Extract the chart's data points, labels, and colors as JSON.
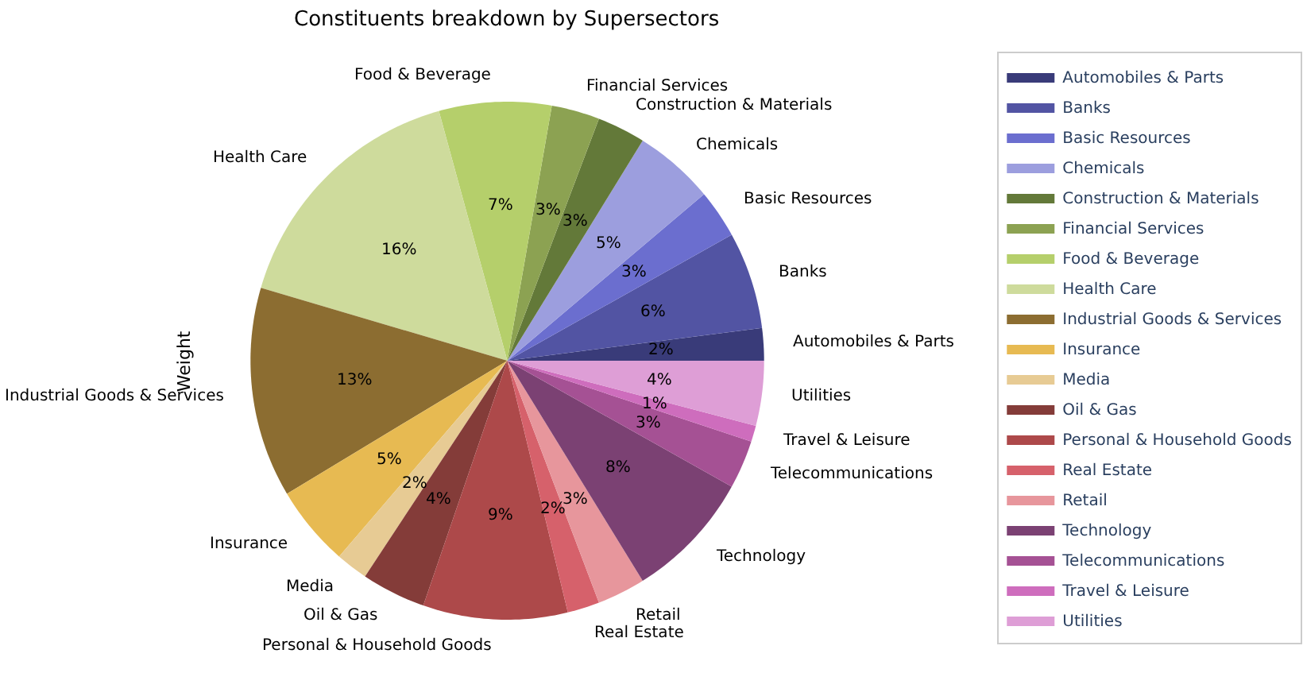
{
  "chart_data": {
    "type": "pie",
    "title": "Constituents breakdown by Supersectors",
    "ylabel": "Weight",
    "categories": [
      "Automobiles & Parts",
      "Banks",
      "Basic Resources",
      "Chemicals",
      "Construction & Materials",
      "Financial Services",
      "Food & Beverage",
      "Health Care",
      "Industrial Goods & Services",
      "Insurance",
      "Media",
      "Oil & Gas",
      "Personal & Household Goods",
      "Real Estate",
      "Retail",
      "Technology",
      "Telecommunications",
      "Travel & Leisure",
      "Utilities"
    ],
    "values": [
      2,
      6,
      3,
      5,
      3,
      3,
      7,
      16,
      13,
      5,
      2,
      4,
      9,
      2,
      3,
      8,
      3,
      1,
      4
    ],
    "value_labels": [
      "2%",
      "6%",
      "3%",
      "5%",
      "3%",
      "3%",
      "7%",
      "16%",
      "13%",
      "5%",
      "2%",
      "4%",
      "9%",
      "2%",
      "3%",
      "8%",
      "3%",
      "1%",
      "4%"
    ],
    "colors": [
      "#393b79",
      "#5254a3",
      "#6b6ecf",
      "#9c9ede",
      "#637939",
      "#8ca252",
      "#b5cf6b",
      "#cedb9c",
      "#8c6d31",
      "#e7ba52",
      "#e7cb94",
      "#843c39",
      "#ad494a",
      "#d6616b",
      "#e7969c",
      "#7b4173",
      "#a55194",
      "#ce6dbd",
      "#de9ed6"
    ],
    "legend": "right"
  }
}
